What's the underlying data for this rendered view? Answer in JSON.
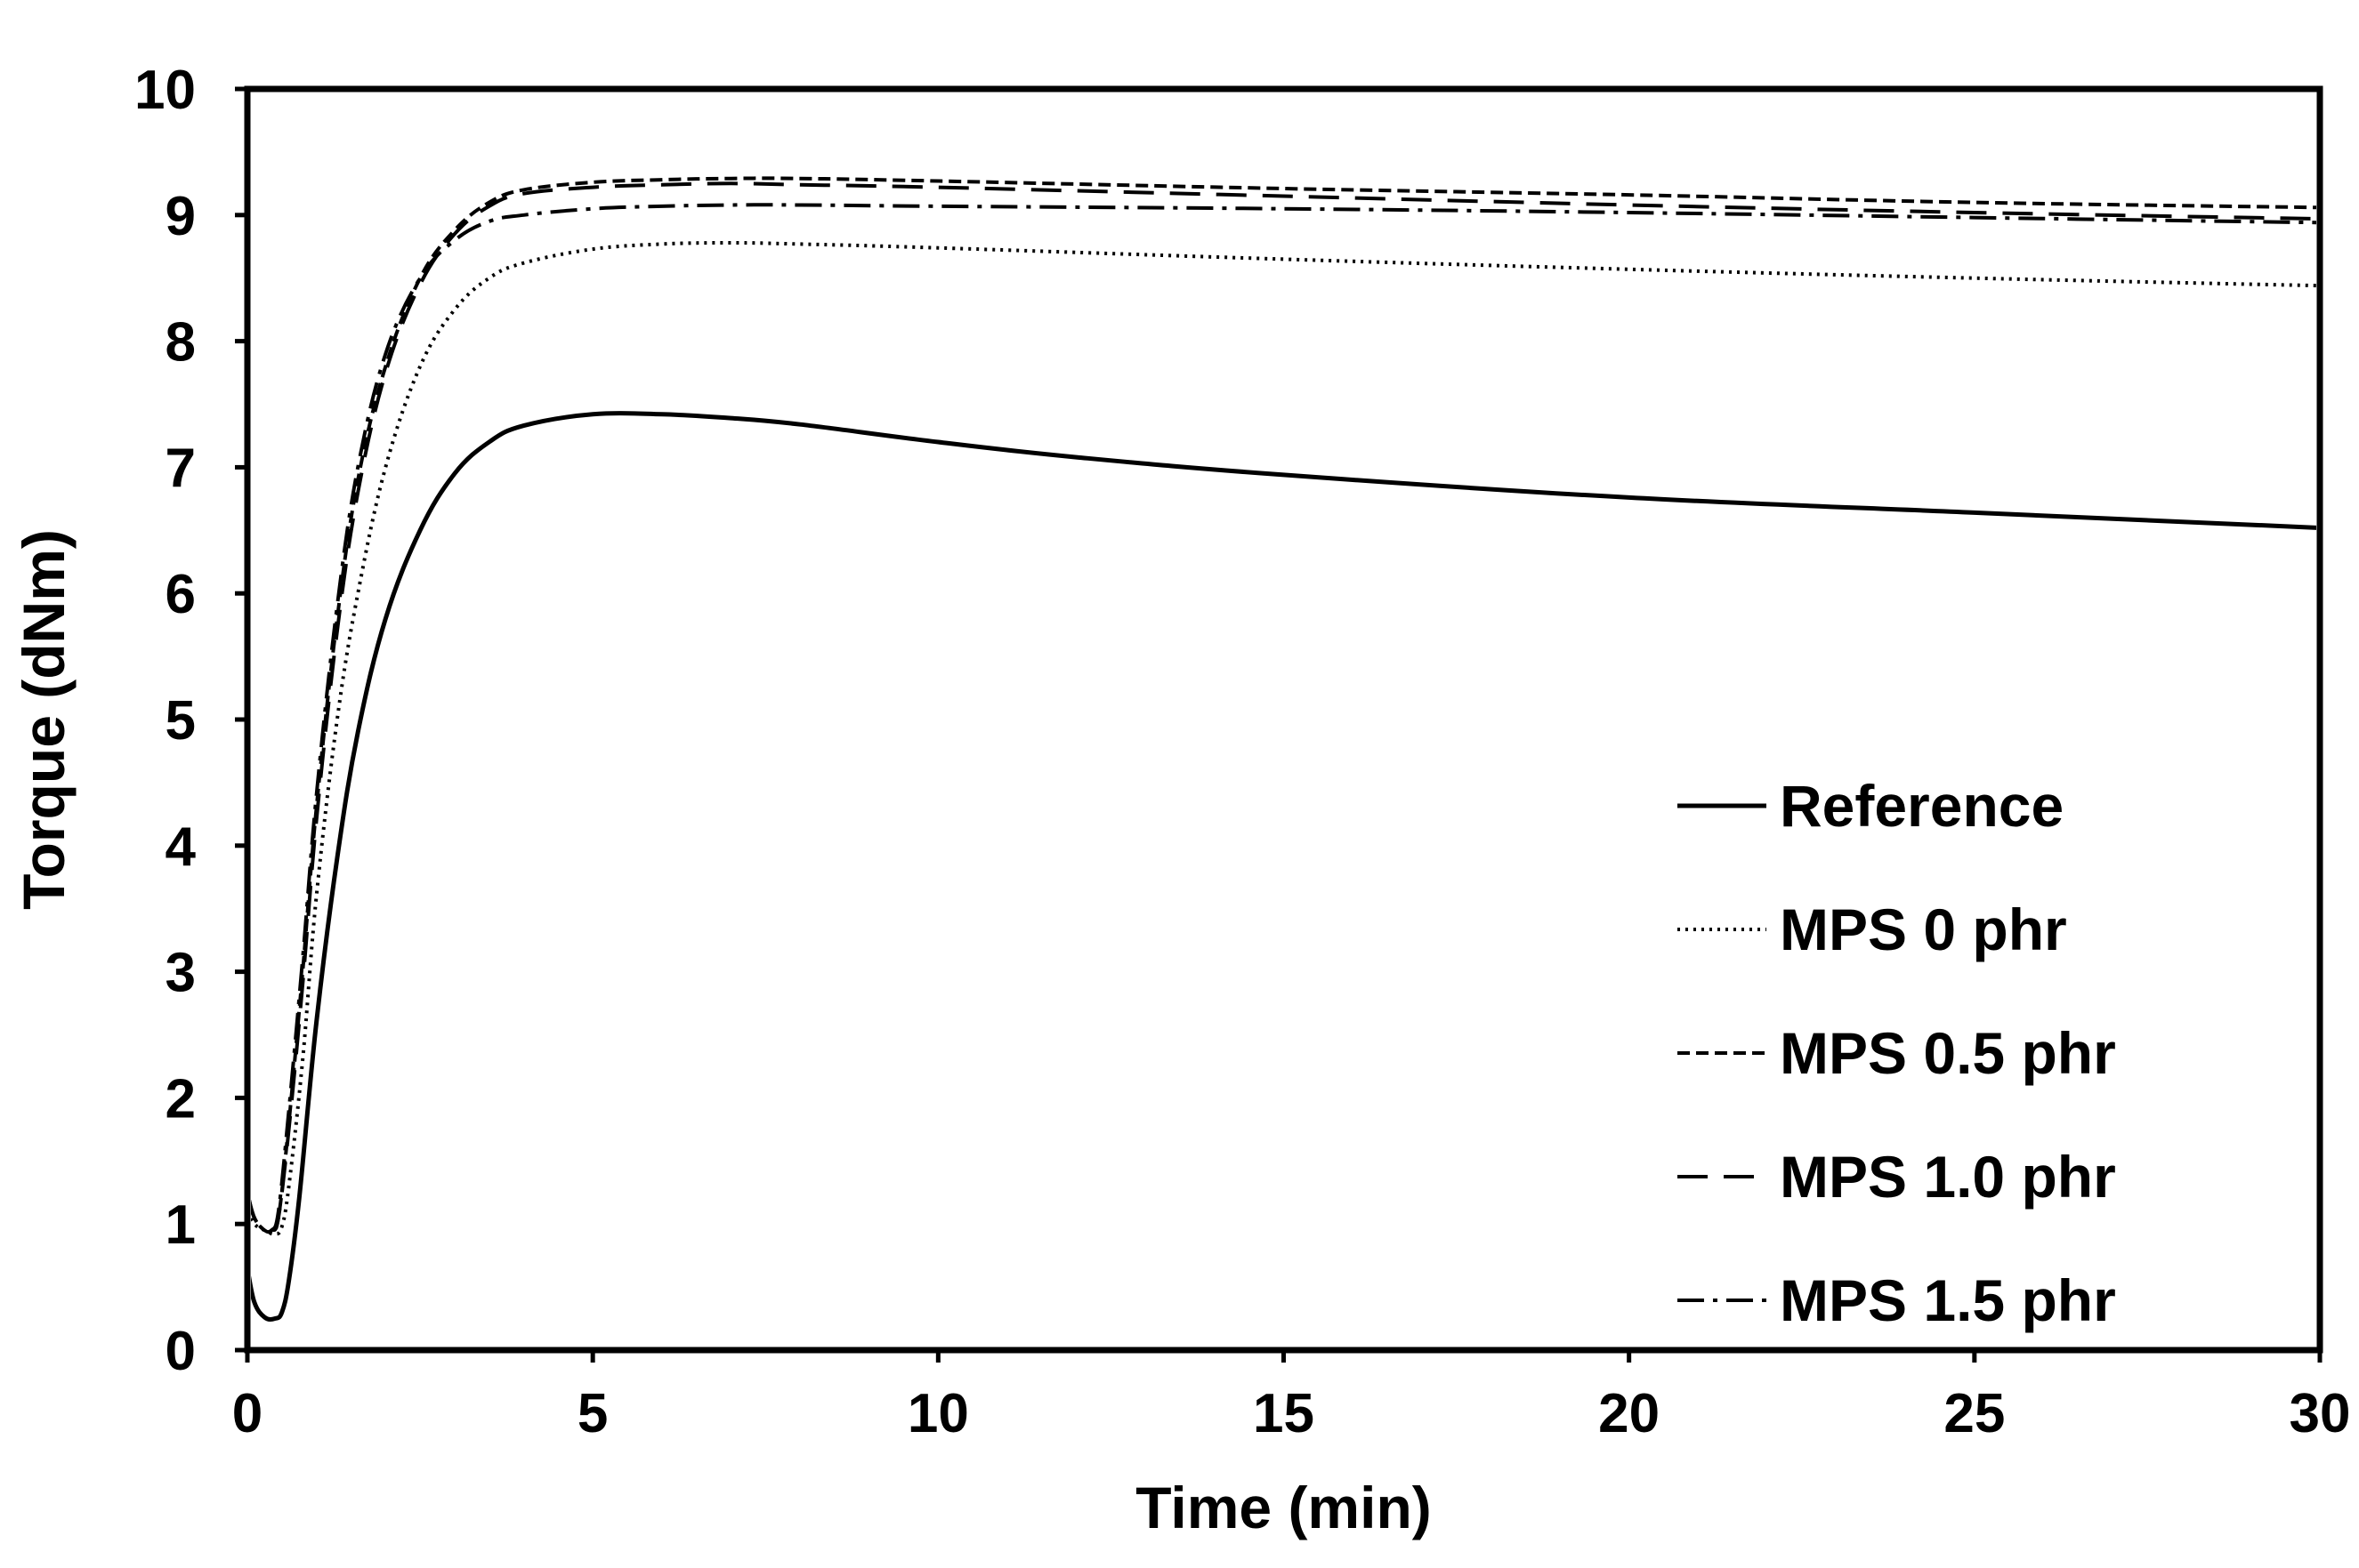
{
  "chart_data": {
    "type": "line",
    "title": "",
    "xlabel": "Time (min)",
    "ylabel": "Torque (dNm)",
    "xlim": [
      0,
      30
    ],
    "ylim": [
      0,
      10
    ],
    "x_ticks": [
      0,
      5,
      10,
      15,
      20,
      25,
      30
    ],
    "y_ticks": [
      0,
      1,
      2,
      3,
      4,
      5,
      6,
      7,
      8,
      9,
      10
    ],
    "grid": false,
    "legend_position": "lower-right",
    "series": [
      {
        "name": "Reference",
        "style": "solid",
        "color": "#000000",
        "x": [
          0,
          0.1,
          0.25,
          0.4,
          0.5,
          0.6,
          0.75,
          1.0,
          1.3,
          1.6,
          2.0,
          2.5,
          3.0,
          3.5,
          4.0,
          5.0,
          6.0,
          7.0,
          8.0,
          10.0,
          12.0,
          15.0,
          20.0,
          25.0,
          30.0
        ],
        "values": [
          0.65,
          0.38,
          0.26,
          0.25,
          0.3,
          0.55,
          1.2,
          2.6,
          3.9,
          4.9,
          5.8,
          6.5,
          6.95,
          7.2,
          7.33,
          7.42,
          7.42,
          7.39,
          7.34,
          7.2,
          7.08,
          6.94,
          6.76,
          6.64,
          6.52
        ]
      },
      {
        "name": "MPS 0 phr",
        "style": "dotted",
        "color": "#000000",
        "x": [
          0,
          0.1,
          0.25,
          0.4,
          0.5,
          0.6,
          0.8,
          1.0,
          1.3,
          1.6,
          2.0,
          2.5,
          3.0,
          3.5,
          4.0,
          5.0,
          6.0,
          7.0,
          8.0,
          10.0,
          15.0,
          20.0,
          25.0,
          30.0
        ],
        "values": [
          1.1,
          1.0,
          0.95,
          0.92,
          0.98,
          1.3,
          2.3,
          3.6,
          5.0,
          6.0,
          7.0,
          7.8,
          8.25,
          8.5,
          8.62,
          8.73,
          8.77,
          8.78,
          8.77,
          8.74,
          8.65,
          8.57,
          8.5,
          8.44
        ]
      },
      {
        "name": "MPS 0.5 phr",
        "style": "short-dash",
        "color": "#000000",
        "x": [
          0,
          0.1,
          0.25,
          0.35,
          0.45,
          0.6,
          0.8,
          1.0,
          1.3,
          1.6,
          2.0,
          2.5,
          3.0,
          3.5,
          4.0,
          5.0,
          6.0,
          7.0,
          8.0,
          10.0,
          15.0,
          20.0,
          25.0,
          30.0
        ],
        "values": [
          1.25,
          1.05,
          0.95,
          0.95,
          1.05,
          1.8,
          3.0,
          4.3,
          5.8,
          6.9,
          7.8,
          8.5,
          8.88,
          9.1,
          9.2,
          9.26,
          9.28,
          9.29,
          9.29,
          9.27,
          9.21,
          9.16,
          9.1,
          9.06
        ]
      },
      {
        "name": "MPS 1.0 phr",
        "style": "long-dash",
        "color": "#000000",
        "x": [
          0,
          0.1,
          0.25,
          0.35,
          0.45,
          0.6,
          0.8,
          1.0,
          1.3,
          1.6,
          2.0,
          2.5,
          3.0,
          3.5,
          4.0,
          5.0,
          6.0,
          7.0,
          8.0,
          10.0,
          15.0,
          20.0,
          25.0,
          30.0
        ],
        "values": [
          1.25,
          1.05,
          0.95,
          0.95,
          1.05,
          1.75,
          2.9,
          4.2,
          5.7,
          6.8,
          7.75,
          8.45,
          8.85,
          9.07,
          9.17,
          9.22,
          9.24,
          9.25,
          9.24,
          9.22,
          9.15,
          9.08,
          9.02,
          8.97
        ]
      },
      {
        "name": "MPS 1.5 phr",
        "style": "dash-dot",
        "color": "#000000",
        "x": [
          0,
          0.1,
          0.25,
          0.35,
          0.45,
          0.6,
          0.8,
          1.0,
          1.3,
          1.6,
          2.0,
          2.5,
          3.0,
          3.5,
          4.0,
          5.0,
          6.0,
          7.0,
          8.0,
          10.0,
          15.0,
          20.0,
          25.0,
          30.0
        ],
        "values": [
          1.25,
          1.05,
          0.95,
          0.95,
          1.1,
          1.9,
          3.1,
          4.4,
          5.9,
          7.0,
          7.9,
          8.5,
          8.8,
          8.95,
          9.0,
          9.05,
          9.07,
          9.08,
          9.08,
          9.07,
          9.05,
          9.02,
          8.98,
          8.94
        ]
      }
    ]
  }
}
